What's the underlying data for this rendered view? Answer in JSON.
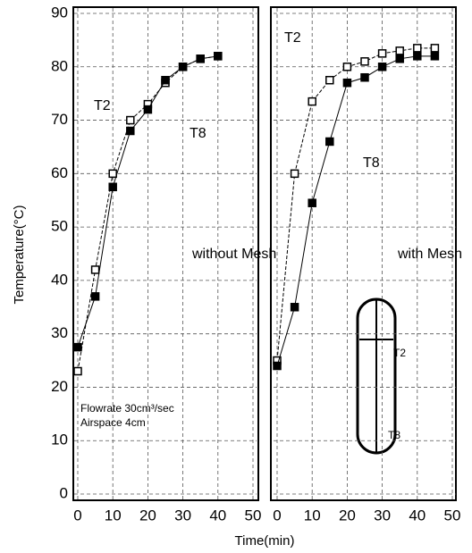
{
  "chart_data": [
    {
      "type": "line",
      "ylabel": "Temperature(°C)",
      "xlabel": "Time(min)",
      "xlim": [
        0,
        50
      ],
      "xticks": [
        0,
        10,
        20,
        30,
        40,
        50
      ],
      "ylim": [
        0,
        90
      ],
      "yticks": [
        0,
        10,
        20,
        30,
        40,
        50,
        60,
        70,
        80,
        90
      ],
      "ytick_labels": true,
      "grid": true,
      "annotations": [
        "without Mesh",
        "Flowrate 30cm³/sec",
        "Airspace 4cm"
      ],
      "series": [
        {
          "name": "T2",
          "color": "#000000",
          "x": [
            0,
            5,
            10,
            15,
            20,
            25,
            30,
            35,
            40
          ],
          "values": [
            23,
            42,
            60,
            70,
            73,
            77,
            80,
            81.5,
            82
          ]
        },
        {
          "name": "T8",
          "color": "#000000",
          "x": [
            0,
            5,
            10,
            15,
            20,
            25,
            30,
            35,
            40
          ],
          "values": [
            27.5,
            37,
            57.5,
            68,
            72,
            77.5,
            80,
            81.5,
            82
          ]
        }
      ]
    },
    {
      "type": "line",
      "xlim": [
        0,
        50
      ],
      "xticks": [
        0,
        10,
        20,
        30,
        40,
        50
      ],
      "ylim": [
        0,
        90
      ],
      "yticks": [
        0,
        10,
        20,
        30,
        40,
        50,
        60,
        70,
        80,
        90
      ],
      "ytick_labels": false,
      "grid": true,
      "annotations": [
        "with Mesh",
        "T2",
        "T8"
      ],
      "series": [
        {
          "name": "T2",
          "color": "#000000",
          "x": [
            0,
            5,
            10,
            15,
            20,
            25,
            30,
            35,
            40,
            45
          ],
          "values": [
            25,
            60,
            73.5,
            77.5,
            80,
            81,
            82.5,
            83,
            83.5,
            83.5
          ]
        },
        {
          "name": "T8",
          "color": "#000000",
          "x": [
            0,
            5,
            10,
            15,
            20,
            25,
            30,
            35,
            40,
            45
          ],
          "values": [
            24,
            35,
            54.5,
            66,
            77,
            78,
            80,
            81.5,
            82,
            82
          ]
        }
      ]
    }
  ]
}
